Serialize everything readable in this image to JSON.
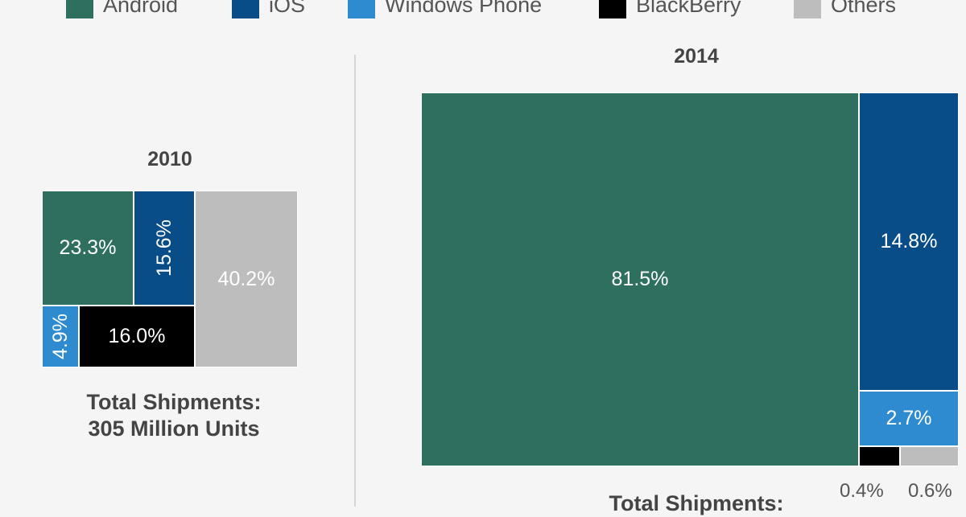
{
  "colors": {
    "android": "#2e6f60",
    "ios": "#084c88",
    "windows_phone": "#2f8bd0",
    "blackberry": "#000000",
    "others": "#bdbdbd"
  },
  "legend": [
    {
      "label": "Android",
      "color": "#2e6f60"
    },
    {
      "label": "iOS",
      "color": "#084c88"
    },
    {
      "label": "Windows Phone",
      "color": "#2f8bd0"
    },
    {
      "label": "BlackBerry",
      "color": "#000000"
    },
    {
      "label": "Others",
      "color": "#bdbdbd"
    }
  ],
  "chart_data": [
    {
      "type": "treemap",
      "title": "2010",
      "series": [
        {
          "name": "Android",
          "value": 23.3,
          "label": "23.3%"
        },
        {
          "name": "iOS",
          "value": 15.6,
          "label": "15.6%"
        },
        {
          "name": "Windows Phone",
          "value": 4.9,
          "label": "4.9%"
        },
        {
          "name": "BlackBerry",
          "value": 16.0,
          "label": "16.0%"
        },
        {
          "name": "Others",
          "value": 40.2,
          "label": "40.2%"
        }
      ],
      "total_line1": "Total Shipments:",
      "total_line2": "305 Million Units"
    },
    {
      "type": "treemap",
      "title": "2014",
      "series": [
        {
          "name": "Android",
          "value": 81.5,
          "label": "81.5%"
        },
        {
          "name": "iOS",
          "value": 14.8,
          "label": "14.8%"
        },
        {
          "name": "Windows Phone",
          "value": 2.7,
          "label": "2.7%"
        },
        {
          "name": "BlackBerry",
          "value": 0.4,
          "label": "0.4%"
        },
        {
          "name": "Others",
          "value": 0.6,
          "label": "0.6%"
        }
      ],
      "total_line1": "Total Shipments:"
    }
  ]
}
